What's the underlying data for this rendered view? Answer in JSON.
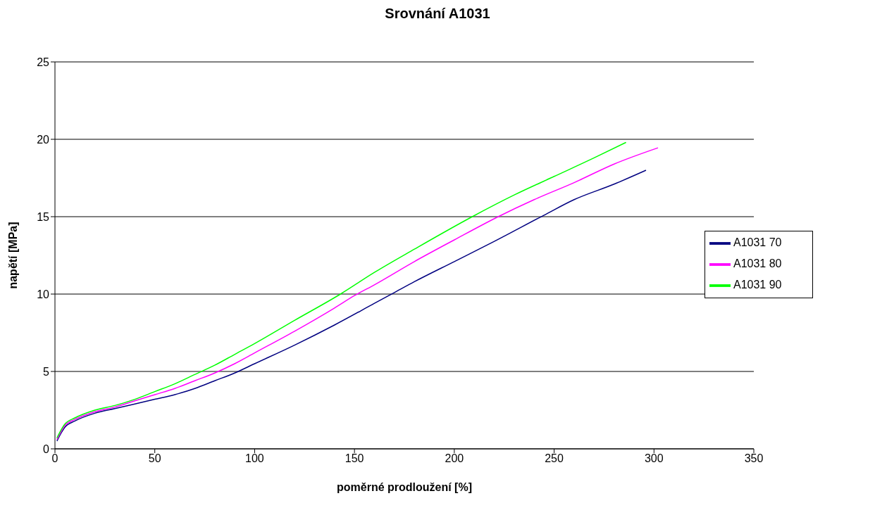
{
  "chart_data": {
    "type": "line",
    "title": "Srovnání A1031",
    "xlabel": "poměrné prodloužení [%]",
    "ylabel": "napětí [MPa]",
    "xlim": [
      0,
      350
    ],
    "xticks": [
      0,
      50,
      100,
      150,
      200,
      250,
      300,
      350
    ],
    "ylim": [
      0,
      25
    ],
    "yticks": [
      0,
      5,
      10,
      15,
      20,
      25
    ],
    "grid": "y",
    "legend": "right",
    "marker": "none",
    "line_style": "solid",
    "series": [
      {
        "name": "A1031 70",
        "color": "#000080",
        "x": [
          1,
          3,
          5,
          10,
          20,
          30,
          40,
          50,
          60,
          70,
          80,
          90,
          100,
          120,
          140,
          160,
          170,
          180,
          200,
          220,
          245,
          260,
          280,
          296
        ],
        "values": [
          0.5,
          1.0,
          1.4,
          1.8,
          2.3,
          2.6,
          2.9,
          3.2,
          3.5,
          3.9,
          4.4,
          4.9,
          5.5,
          6.7,
          8.0,
          9.4,
          10.1,
          10.8,
          12.1,
          13.4,
          15.1,
          16.1,
          17.1,
          18.0
        ]
      },
      {
        "name": "A1031 80",
        "color": "#ff00ff",
        "x": [
          1,
          3,
          5,
          10,
          20,
          30,
          40,
          50,
          60,
          70,
          80,
          90,
          100,
          120,
          140,
          150,
          160,
          180,
          200,
          222,
          240,
          260,
          280,
          302
        ],
        "values": [
          0.6,
          1.1,
          1.5,
          1.9,
          2.4,
          2.7,
          3.1,
          3.5,
          3.9,
          4.4,
          4.9,
          5.5,
          6.2,
          7.6,
          9.1,
          9.9,
          10.6,
          12.1,
          13.5,
          15.0,
          16.1,
          17.2,
          18.4,
          19.45
        ]
      },
      {
        "name": "A1031 90",
        "color": "#00ff00",
        "x": [
          1,
          3,
          5,
          10,
          20,
          30,
          40,
          50,
          60,
          70,
          80,
          90,
          100,
          120,
          143,
          160,
          180,
          209,
          230,
          250,
          270,
          286
        ],
        "values": [
          0.7,
          1.2,
          1.6,
          2.0,
          2.5,
          2.8,
          3.2,
          3.7,
          4.2,
          4.8,
          5.4,
          6.1,
          6.8,
          8.3,
          10.0,
          11.4,
          12.9,
          15.0,
          16.4,
          17.6,
          18.8,
          19.8
        ]
      }
    ]
  }
}
